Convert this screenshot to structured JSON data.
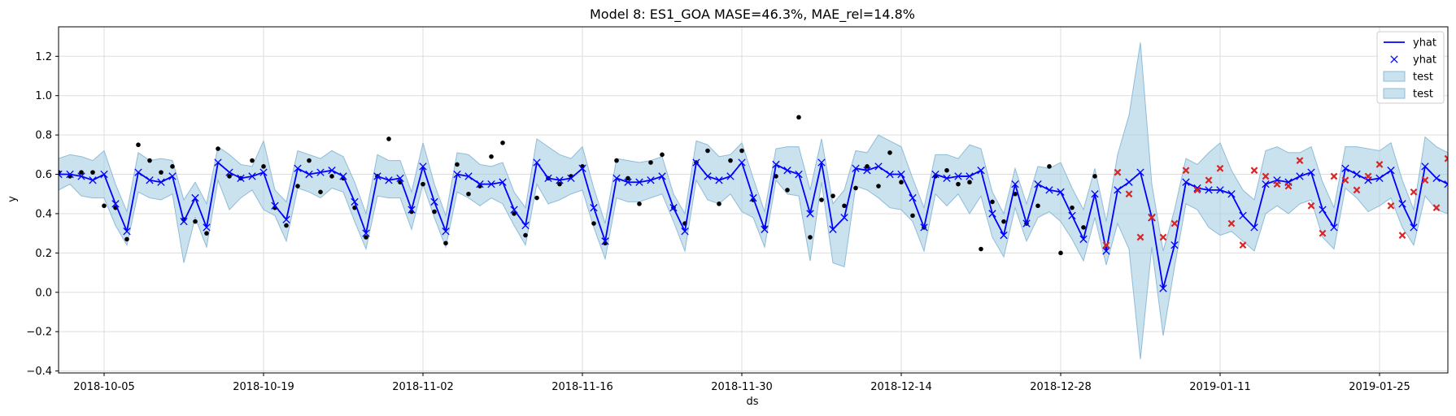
{
  "chart_data": {
    "type": "line",
    "title": "Model 8: ES1_GOA MASE=46.3%, MAE_rel=14.8%",
    "xlabel": "ds",
    "ylabel": "y",
    "x_start": "2018-10-01",
    "x_ticks": [
      "2018-10-05",
      "2018-10-19",
      "2018-11-02",
      "2018-11-16",
      "2018-11-30",
      "2018-12-14",
      "2018-12-28",
      "2019-01-11",
      "2019-01-25"
    ],
    "y_ticks": [
      "−0.4",
      "−0.2",
      "0.0",
      "0.2",
      "0.4",
      "0.6",
      "0.8",
      "1.0",
      "1.2"
    ],
    "xlim": [
      "2018-10-01",
      "2019-01-31"
    ],
    "ylim": [
      -0.41,
      1.35
    ],
    "grid": true,
    "legend_position": "top-right",
    "legend": [
      {
        "label": "yhat",
        "kind": "line"
      },
      {
        "label": "yhat",
        "kind": "marker"
      },
      {
        "label": "test",
        "kind": "patch"
      },
      {
        "label": "test",
        "kind": "patch"
      }
    ],
    "colors": {
      "yhat": "#0000ff",
      "band": "#a6cde2",
      "band_edge": "#8fbcd8",
      "train_points": "#000000",
      "test_points": "#d62728",
      "grid": "#dddddd"
    },
    "yhat": [
      0.6,
      0.6,
      0.59,
      0.57,
      0.6,
      0.45,
      0.31,
      0.61,
      0.57,
      0.56,
      0.59,
      0.36,
      0.48,
      0.33,
      0.66,
      0.61,
      0.58,
      0.59,
      0.61,
      0.44,
      0.37,
      0.63,
      0.6,
      0.61,
      0.62,
      0.59,
      0.46,
      0.3,
      0.59,
      0.57,
      0.58,
      0.42,
      0.64,
      0.46,
      0.31,
      0.6,
      0.59,
      0.55,
      0.55,
      0.56,
      0.42,
      0.34,
      0.66,
      0.58,
      0.57,
      0.58,
      0.63,
      0.43,
      0.26,
      0.58,
      0.56,
      0.56,
      0.57,
      0.59,
      0.43,
      0.31,
      0.66,
      0.59,
      0.57,
      0.59,
      0.66,
      0.48,
      0.32,
      0.65,
      0.62,
      0.6,
      0.4,
      0.66,
      0.32,
      0.38,
      0.63,
      0.62,
      0.64,
      0.6,
      0.6,
      0.48,
      0.33,
      0.6,
      0.58,
      0.59,
      0.59,
      0.62,
      0.4,
      0.29,
      0.55,
      0.35,
      0.55,
      0.52,
      0.51,
      0.39,
      0.27,
      0.5,
      0.21,
      0.52,
      0.56,
      0.61,
      0.38,
      0.02,
      0.24,
      0.56,
      0.53,
      0.52,
      0.52,
      0.5,
      0.39,
      0.33,
      0.55,
      0.57,
      0.56,
      0.59,
      0.61,
      0.42,
      0.33,
      0.63,
      0.6,
      0.57,
      0.58,
      0.62,
      0.45,
      0.33,
      0.64,
      0.58,
      0.55,
      0.55
    ],
    "upper": [
      0.68,
      0.7,
      0.69,
      0.67,
      0.72,
      0.55,
      0.41,
      0.71,
      0.67,
      0.68,
      0.67,
      0.47,
      0.56,
      0.45,
      0.74,
      0.7,
      0.65,
      0.64,
      0.77,
      0.52,
      0.46,
      0.72,
      0.7,
      0.68,
      0.72,
      0.69,
      0.56,
      0.4,
      0.7,
      0.67,
      0.67,
      0.51,
      0.76,
      0.55,
      0.39,
      0.71,
      0.7,
      0.65,
      0.64,
      0.66,
      0.51,
      0.43,
      0.78,
      0.74,
      0.7,
      0.68,
      0.74,
      0.53,
      0.35,
      0.68,
      0.67,
      0.66,
      0.67,
      0.69,
      0.5,
      0.4,
      0.77,
      0.75,
      0.69,
      0.7,
      0.76,
      0.58,
      0.41,
      0.73,
      0.74,
      0.74,
      0.52,
      0.78,
      0.45,
      0.52,
      0.72,
      0.71,
      0.8,
      0.77,
      0.74,
      0.58,
      0.43,
      0.7,
      0.7,
      0.68,
      0.75,
      0.73,
      0.51,
      0.4,
      0.63,
      0.45,
      0.64,
      0.63,
      0.66,
      0.53,
      0.42,
      0.63,
      0.36,
      0.7,
      0.9,
      1.27,
      0.55,
      0.21,
      0.42,
      0.68,
      0.65,
      0.71,
      0.76,
      0.62,
      0.52,
      0.47,
      0.72,
      0.74,
      0.71,
      0.71,
      0.74,
      0.56,
      0.43,
      0.74,
      0.74,
      0.73,
      0.72,
      0.76,
      0.57,
      0.42,
      0.79,
      0.74,
      0.71,
      0.7
    ],
    "lower": [
      0.52,
      0.55,
      0.49,
      0.48,
      0.48,
      0.34,
      0.24,
      0.51,
      0.48,
      0.47,
      0.5,
      0.15,
      0.38,
      0.23,
      0.57,
      0.42,
      0.48,
      0.52,
      0.42,
      0.39,
      0.26,
      0.53,
      0.51,
      0.48,
      0.53,
      0.51,
      0.36,
      0.22,
      0.49,
      0.48,
      0.48,
      0.32,
      0.55,
      0.38,
      0.23,
      0.51,
      0.48,
      0.44,
      0.48,
      0.45,
      0.34,
      0.24,
      0.55,
      0.45,
      0.47,
      0.5,
      0.52,
      0.33,
      0.17,
      0.48,
      0.46,
      0.46,
      0.48,
      0.5,
      0.36,
      0.21,
      0.57,
      0.47,
      0.45,
      0.5,
      0.41,
      0.38,
      0.23,
      0.57,
      0.5,
      0.49,
      0.16,
      0.56,
      0.15,
      0.13,
      0.54,
      0.52,
      0.48,
      0.43,
      0.42,
      0.36,
      0.21,
      0.5,
      0.44,
      0.5,
      0.4,
      0.49,
      0.28,
      0.18,
      0.43,
      0.26,
      0.38,
      0.41,
      0.36,
      0.27,
      0.16,
      0.38,
      0.14,
      0.35,
      0.22,
      -0.34,
      0.23,
      -0.22,
      0.13,
      0.45,
      0.42,
      0.33,
      0.29,
      0.31,
      0.26,
      0.21,
      0.4,
      0.44,
      0.4,
      0.45,
      0.47,
      0.28,
      0.22,
      0.53,
      0.48,
      0.41,
      0.44,
      0.48,
      0.33,
      0.24,
      0.49,
      0.42,
      0.4,
      0.42
    ],
    "actual_train": [
      [
        0,
        0.61
      ],
      [
        1,
        0.59
      ],
      [
        2,
        0.61
      ],
      [
        3,
        0.61
      ],
      [
        4,
        0.44
      ],
      [
        5,
        0.43
      ],
      [
        6,
        0.27
      ],
      [
        7,
        0.75
      ],
      [
        8,
        0.67
      ],
      [
        9,
        0.61
      ],
      [
        10,
        0.64
      ],
      [
        11,
        0.37
      ],
      [
        12,
        0.36
      ],
      [
        13,
        0.3
      ],
      [
        14,
        0.73
      ],
      [
        15,
        0.59
      ],
      [
        16,
        0.58
      ],
      [
        17,
        0.67
      ],
      [
        18,
        0.64
      ],
      [
        19,
        0.43
      ],
      [
        20,
        0.34
      ],
      [
        21,
        0.54
      ],
      [
        22,
        0.67
      ],
      [
        23,
        0.51
      ],
      [
        24,
        0.59
      ],
      [
        25,
        0.58
      ],
      [
        26,
        0.43
      ],
      [
        27,
        0.28
      ],
      [
        28,
        0.59
      ],
      [
        29,
        0.78
      ],
      [
        30,
        0.56
      ],
      [
        31,
        0.41
      ],
      [
        32,
        0.55
      ],
      [
        33,
        0.41
      ],
      [
        34,
        0.25
      ],
      [
        35,
        0.65
      ],
      [
        36,
        0.5
      ],
      [
        37,
        0.54
      ],
      [
        38,
        0.69
      ],
      [
        39,
        0.76
      ],
      [
        40,
        0.4
      ],
      [
        41,
        0.29
      ],
      [
        42,
        0.48
      ],
      [
        43,
        0.58
      ],
      [
        44,
        0.55
      ],
      [
        45,
        0.59
      ],
      [
        46,
        0.64
      ],
      [
        47,
        0.35
      ],
      [
        48,
        0.25
      ],
      [
        49,
        0.67
      ],
      [
        50,
        0.58
      ],
      [
        51,
        0.45
      ],
      [
        52,
        0.66
      ],
      [
        53,
        0.7
      ],
      [
        54,
        0.43
      ],
      [
        55,
        0.35
      ],
      [
        56,
        0.66
      ],
      [
        57,
        0.72
      ],
      [
        58,
        0.45
      ],
      [
        59,
        0.67
      ],
      [
        60,
        0.72
      ],
      [
        61,
        0.47
      ],
      [
        62,
        0.33
      ],
      [
        63,
        0.59
      ],
      [
        64,
        0.52
      ],
      [
        65,
        0.89
      ],
      [
        66,
        0.28
      ],
      [
        67,
        0.47
      ],
      [
        68,
        0.49
      ],
      [
        69,
        0.44
      ],
      [
        70,
        0.53
      ],
      [
        71,
        0.64
      ],
      [
        72,
        0.54
      ],
      [
        73,
        0.71
      ],
      [
        74,
        0.56
      ],
      [
        75,
        0.39
      ],
      [
        76,
        0.33
      ],
      [
        77,
        0.59
      ],
      [
        78,
        0.62
      ],
      [
        79,
        0.55
      ],
      [
        80,
        0.56
      ],
      [
        81,
        0.22
      ],
      [
        82,
        0.46
      ],
      [
        83,
        0.36
      ],
      [
        84,
        0.5
      ],
      [
        85,
        0.35
      ],
      [
        86,
        0.44
      ],
      [
        87,
        0.64
      ],
      [
        88,
        0.2
      ],
      [
        89,
        0.43
      ],
      [
        90,
        0.33
      ],
      [
        91,
        0.59
      ]
    ],
    "actual_test": [
      [
        92,
        0.24
      ],
      [
        93,
        0.61
      ],
      [
        94,
        0.5
      ],
      [
        95,
        0.28
      ],
      [
        96,
        0.38
      ],
      [
        97,
        0.28
      ],
      [
        98,
        0.35
      ],
      [
        99,
        0.62
      ],
      [
        100,
        0.52
      ],
      [
        101,
        0.57
      ],
      [
        102,
        0.63
      ],
      [
        103,
        0.35
      ],
      [
        104,
        0.24
      ],
      [
        105,
        0.62
      ],
      [
        106,
        0.59
      ],
      [
        107,
        0.55
      ],
      [
        108,
        0.54
      ],
      [
        109,
        0.67
      ],
      [
        110,
        0.44
      ],
      [
        111,
        0.3
      ],
      [
        112,
        0.59
      ],
      [
        113,
        0.57
      ],
      [
        114,
        0.52
      ],
      [
        115,
        0.59
      ],
      [
        116,
        0.65
      ],
      [
        117,
        0.44
      ],
      [
        118,
        0.29
      ],
      [
        119,
        0.51
      ],
      [
        120,
        0.57
      ],
      [
        121,
        0.43
      ],
      [
        122,
        0.68
      ]
    ]
  }
}
